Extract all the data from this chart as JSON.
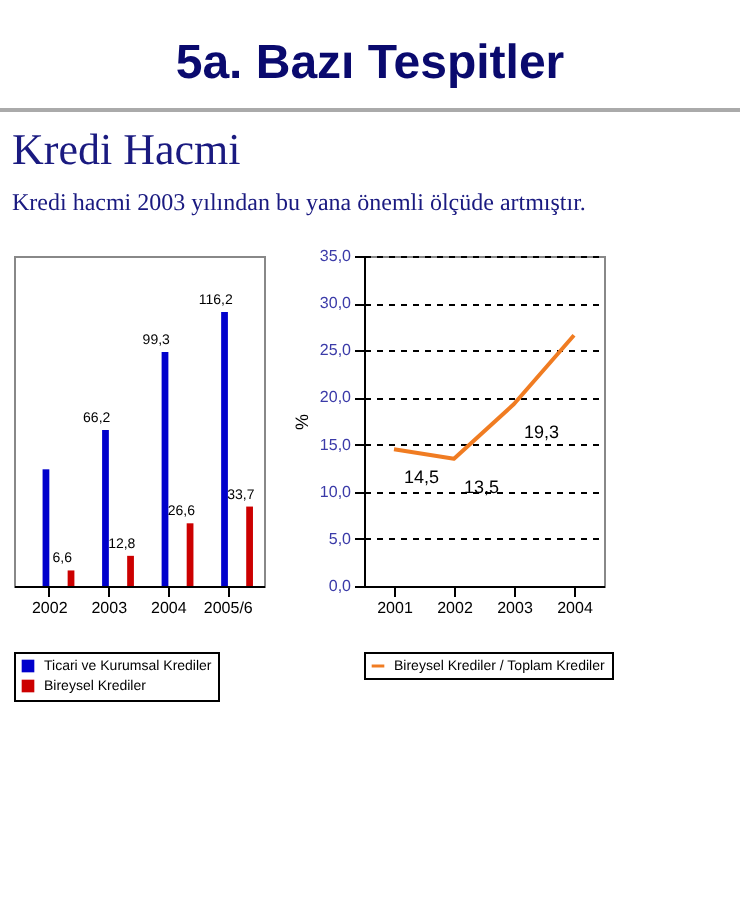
{
  "chart_data": [
    {
      "type": "bar",
      "title": "5a. Bazı Tespitler",
      "subtitle": "Kredi Hacmi",
      "annotations": [
        "Kredi hacmi 2003 yılından bu yana önemli ölçüde artmıştır."
      ],
      "categories": [
        "2002",
        "2003",
        "2004",
        "2005/6"
      ],
      "series": [
        {
          "name": "Ticari ve Kurumsal Krediler",
          "color": "#0000cc",
          "values": [
            49.5,
            66.2,
            99.3,
            116.2
          ],
          "value_labels": [
            null,
            "66,2",
            "99,3",
            "116,2"
          ]
        },
        {
          "name": "Bireysel Krediler",
          "color": "#cc0000",
          "values": [
            6.6,
            12.8,
            26.6,
            33.7
          ],
          "value_labels": [
            "6,6",
            "12,8",
            "26,6",
            "33,7"
          ]
        }
      ],
      "ylim": [
        0,
        140
      ],
      "tick_labels": "x",
      "legend": "bottom"
    },
    {
      "type": "line",
      "ylabel": "%",
      "categories": [
        "2001",
        "2002",
        "2003",
        "2004"
      ],
      "series": [
        {
          "name": "Bireysel Krediler / Toplam Krediler",
          "color": "#f07c22",
          "values": [
            14.5,
            13.5,
            19.3,
            26.6
          ],
          "value_labels": [
            "14,5",
            "13,5",
            "19,3",
            null
          ]
        }
      ],
      "ylim": [
        0,
        35
      ],
      "yticks": [
        {
          "value": 0,
          "label": "0,0"
        },
        {
          "value": 5,
          "label": "5,0"
        },
        {
          "value": 10,
          "label": "10,0"
        },
        {
          "value": 15,
          "label": "15,0"
        },
        {
          "value": 20,
          "label": "20,0"
        },
        {
          "value": 25,
          "label": "25,0"
        },
        {
          "value": 30,
          "label": "30,0"
        },
        {
          "value": 35,
          "label": "35,0"
        }
      ],
      "grid": "y",
      "legend": "bottom"
    }
  ]
}
